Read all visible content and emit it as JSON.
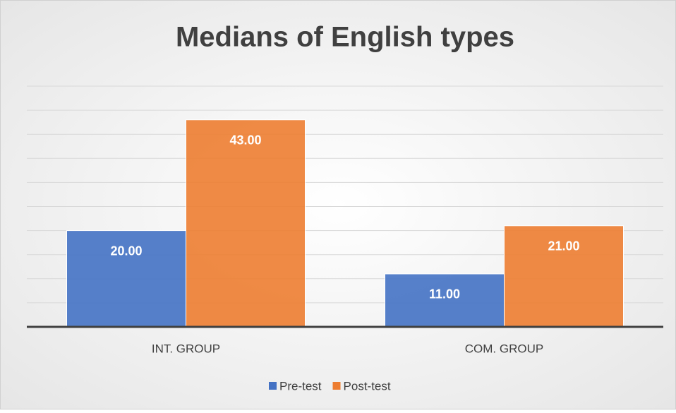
{
  "chart_data": {
    "type": "bar",
    "title": "Medians of English types",
    "categories": [
      "INT. GROUP",
      "COM. GROUP"
    ],
    "series": [
      {
        "name": "Pre-test",
        "color": "#4472c4",
        "values": [
          20,
          11
        ],
        "value_labels": [
          "20.00",
          "11.00"
        ]
      },
      {
        "name": "Post-test",
        "color": "#ed7d31",
        "values": [
          43,
          21
        ],
        "value_labels": [
          "43.00",
          "21.00"
        ]
      }
    ],
    "ylim": [
      0,
      50
    ],
    "yticks": [
      0,
      5,
      10,
      15,
      20,
      25,
      30,
      35,
      40,
      45,
      50
    ],
    "grid": true,
    "legend": "bottom"
  }
}
